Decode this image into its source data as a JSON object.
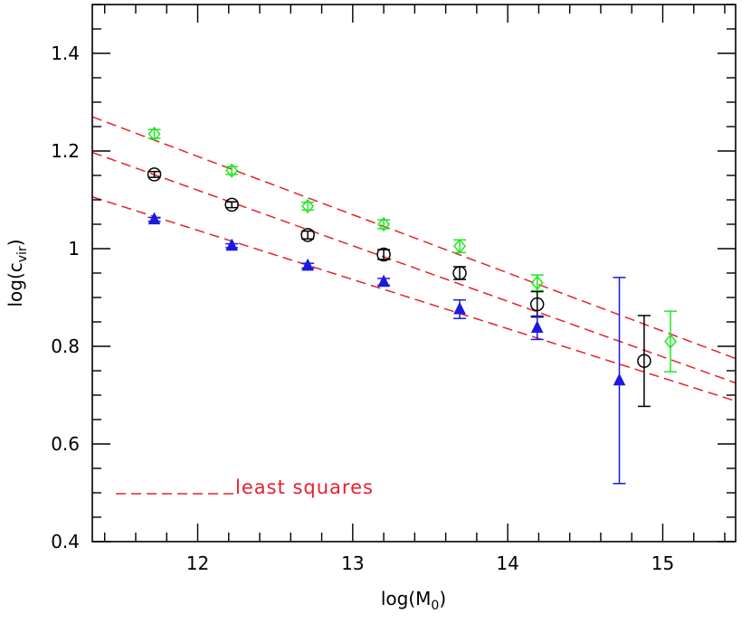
{
  "chart_data": {
    "type": "scatter",
    "xlabel": "log(M",
    "xlabel_sub": "0",
    "xlabel_end": ")",
    "ylabel": "log(c",
    "ylabel_sub": "vir",
    "ylabel_end": ")",
    "xlim": [
      11.32,
      15.47
    ],
    "ylim": [
      0.4,
      1.5
    ],
    "x_ticks": [
      12,
      13,
      14,
      15
    ],
    "x_tick_labels": [
      "12",
      "13",
      "14",
      "15"
    ],
    "y_ticks": [
      0.4,
      0.6,
      0.8,
      1.0,
      1.2,
      1.4
    ],
    "y_tick_labels": [
      "0.4",
      "0.6",
      "0.8",
      "1",
      "1.2",
      "1.4"
    ],
    "legend_label": "least squares",
    "legend_placement": "bottom-left",
    "colors": {
      "green": "#22e622",
      "black": "#000000",
      "blue": "#1a1ae0",
      "fit": "#e8202a"
    },
    "series": [
      {
        "marker": "diamond",
        "color": "green",
        "points": [
          {
            "x": 11.72,
            "y": 1.235,
            "err": 0.009
          },
          {
            "x": 12.22,
            "y": 1.16,
            "err": 0.008
          },
          {
            "x": 12.71,
            "y": 1.087,
            "err": 0.008
          },
          {
            "x": 13.2,
            "y": 1.05,
            "err": 0.009
          },
          {
            "x": 13.69,
            "y": 1.005,
            "err": 0.013
          },
          {
            "x": 14.19,
            "y": 0.93,
            "err": 0.016
          },
          {
            "x": 15.05,
            "y": 0.81,
            "err": 0.062
          }
        ]
      },
      {
        "marker": "circle",
        "color": "black",
        "points": [
          {
            "x": 11.72,
            "y": 1.152,
            "err": 0.006
          },
          {
            "x": 12.22,
            "y": 1.09,
            "err": 0.006
          },
          {
            "x": 12.71,
            "y": 1.028,
            "err": 0.008
          },
          {
            "x": 13.2,
            "y": 0.988,
            "err": 0.01
          },
          {
            "x": 13.69,
            "y": 0.95,
            "err": 0.013
          },
          {
            "x": 14.19,
            "y": 0.886,
            "err": 0.026
          },
          {
            "x": 14.88,
            "y": 0.77,
            "err": 0.093
          }
        ]
      },
      {
        "marker": "triangle",
        "color": "blue",
        "points": [
          {
            "x": 11.72,
            "y": 1.06,
            "err": 0.004
          },
          {
            "x": 12.22,
            "y": 1.006,
            "err": 0.004
          },
          {
            "x": 12.71,
            "y": 0.965,
            "err": 0.005
          },
          {
            "x": 13.2,
            "y": 0.932,
            "err": 0.007
          },
          {
            "x": 13.69,
            "y": 0.876,
            "err": 0.019
          },
          {
            "x": 14.19,
            "y": 0.838,
            "err": 0.024
          },
          {
            "x": 14.72,
            "y": 0.73,
            "err": 0.211
          }
        ]
      }
    ],
    "fit_lines": [
      {
        "x": [
          11.32,
          15.47
        ],
        "y": [
          1.27,
          0.775
        ]
      },
      {
        "x": [
          11.32,
          15.47
        ],
        "y": [
          1.197,
          0.725
        ]
      },
      {
        "x": [
          11.32,
          15.47
        ],
        "y": [
          1.106,
          0.688
        ]
      }
    ]
  }
}
